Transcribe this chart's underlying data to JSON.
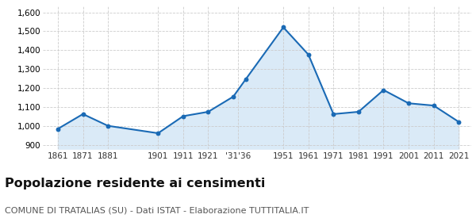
{
  "years": [
    1861,
    1871,
    1881,
    1901,
    1911,
    1921,
    1931,
    1936,
    1951,
    1961,
    1971,
    1981,
    1991,
    2001,
    2011,
    2021
  ],
  "population": [
    985,
    1063,
    1001,
    962,
    1052,
    1075,
    1155,
    1247,
    1521,
    1377,
    1063,
    1075,
    1190,
    1120,
    1108,
    1022
  ],
  "line_color": "#1a6ab5",
  "fill_color": "#daeaf7",
  "marker_color": "#1a6ab5",
  "background_color": "#ffffff",
  "grid_color": "#cccccc",
  "ylim": [
    880,
    1630
  ],
  "yticks": [
    900,
    1000,
    1100,
    1200,
    1300,
    1400,
    1500,
    1600
  ],
  "x_tick_positions": [
    1861,
    1871,
    1881,
    1901,
    1911,
    1921,
    1933,
    1951,
    1961,
    1971,
    1981,
    1991,
    2001,
    2011,
    2021
  ],
  "x_tick_labels": [
    "1861",
    "1871",
    "1881",
    "1901",
    "1911",
    "1921",
    "'31'36",
    "1951",
    "1961",
    "1971",
    "1981",
    "1991",
    "2001",
    "2011",
    "2021"
  ],
  "xlim_left": 1855,
  "xlim_right": 2026,
  "title": "Popolazione residente ai censimenti",
  "subtitle": "COMUNE DI TRATALIAS (SU) - Dati ISTAT - Elaborazione TUTTITALIA.IT",
  "title_fontsize": 11.5,
  "subtitle_fontsize": 8
}
